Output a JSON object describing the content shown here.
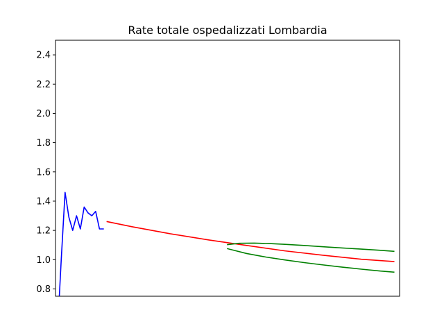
{
  "chart_data": {
    "type": "line",
    "title": "Rate totale ospedalizzati Lombardia",
    "xlabel": "",
    "ylabel": "",
    "ylim": [
      0.75,
      2.5
    ],
    "xlim": [
      0,
      90
    ],
    "yticks": [
      "0.8",
      "1.0",
      "1.2",
      "1.4",
      "1.6",
      "1.8",
      "2.0",
      "2.2",
      "2.4"
    ],
    "xticks": [],
    "grid": false,
    "series": [
      {
        "color": "#0000ff",
        "x": [
          1,
          1.5,
          2.5,
          3.5,
          4.5,
          5.5,
          6.5,
          7.5,
          8.5,
          9.5,
          10.5,
          11.5,
          12.5
        ],
        "y": [
          0.75,
          1.0,
          1.46,
          1.29,
          1.2,
          1.3,
          1.21,
          1.36,
          1.32,
          1.3,
          1.33,
          1.21,
          1.21
        ]
      },
      {
        "color": "#ff0000",
        "x": [
          13.5,
          20,
          30,
          40,
          50,
          60,
          70,
          80,
          88.5
        ],
        "y": [
          1.26,
          1.225,
          1.177,
          1.135,
          1.097,
          1.06,
          1.03,
          1.003,
          0.987
        ]
      },
      {
        "color": "#008000",
        "x": [
          45,
          48,
          52,
          56,
          60,
          65,
          70,
          75,
          80,
          85,
          88.5
        ],
        "y": [
          1.103,
          1.112,
          1.113,
          1.11,
          1.105,
          1.097,
          1.088,
          1.08,
          1.072,
          1.064,
          1.057
        ]
      },
      {
        "color": "#008000",
        "x": [
          45,
          50,
          55,
          60,
          65,
          70,
          75,
          80,
          85,
          88.5
        ],
        "y": [
          1.075,
          1.042,
          1.018,
          0.998,
          0.98,
          0.964,
          0.949,
          0.935,
          0.922,
          0.915
        ]
      }
    ]
  }
}
